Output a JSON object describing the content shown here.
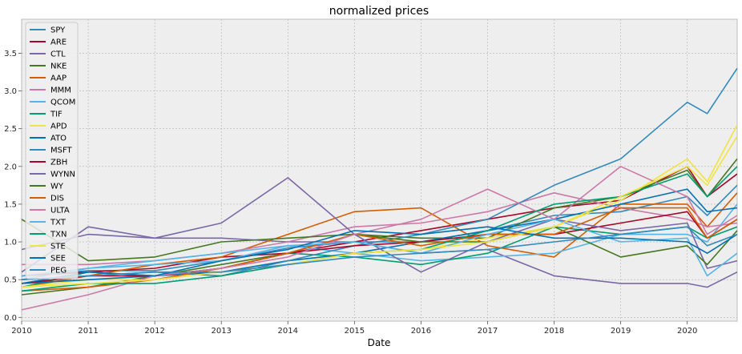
{
  "chart_data": {
    "type": "line",
    "title": "normalized prices",
    "xlabel": "Date",
    "ylabel": "",
    "xlim": [
      2010.0,
      2020.75
    ],
    "ylim": [
      -0.05,
      3.95
    ],
    "x_ticks": [
      {
        "value": 2010,
        "label": "2010"
      },
      {
        "value": 2011,
        "label": "2011"
      },
      {
        "value": 2012,
        "label": "2012"
      },
      {
        "value": 2013,
        "label": "2013"
      },
      {
        "value": 2014,
        "label": "2014"
      },
      {
        "value": 2015,
        "label": "2015"
      },
      {
        "value": 2016,
        "label": "2016"
      },
      {
        "value": 2017,
        "label": "2017"
      },
      {
        "value": 2018,
        "label": "2018"
      },
      {
        "value": 2019,
        "label": "2019"
      },
      {
        "value": 2020,
        "label": "2020"
      }
    ],
    "y_ticks": [
      {
        "value": 0.0,
        "label": "0.0"
      },
      {
        "value": 0.5,
        "label": "0.5"
      },
      {
        "value": 1.0,
        "label": "1.0"
      },
      {
        "value": 1.5,
        "label": "1.5"
      },
      {
        "value": 2.0,
        "label": "2.0"
      },
      {
        "value": 2.5,
        "label": "2.5"
      },
      {
        "value": 3.0,
        "label": "3.0"
      },
      {
        "value": 3.5,
        "label": "3.5"
      }
    ],
    "grid": true,
    "legend_position": "top-left",
    "colors": {
      "background": "#eeeeee",
      "grid": "#b2b2b2",
      "frame": "#bcbcbc"
    },
    "series": [
      {
        "name": "SPY",
        "color": "#348abd",
        "x": [
          2010,
          2011,
          2012,
          2013,
          2014,
          2015,
          2016,
          2017,
          2018,
          2019,
          2020,
          2020.3,
          2020.75
        ],
        "y": [
          0.55,
          0.62,
          0.62,
          0.75,
          0.92,
          1.0,
          1.0,
          1.15,
          1.35,
          1.4,
          1.6,
          1.35,
          1.75
        ]
      },
      {
        "name": "ARE",
        "color": "#a60628",
        "x": [
          2010,
          2011,
          2012,
          2013,
          2014,
          2015,
          2016,
          2017,
          2018,
          2019,
          2020,
          2020.3,
          2020.75
        ],
        "y": [
          0.55,
          0.6,
          0.65,
          0.8,
          0.85,
          1.0,
          1.15,
          1.3,
          1.45,
          1.55,
          2.0,
          1.6,
          1.9
        ]
      },
      {
        "name": "CTL",
        "color": "#7a68a6",
        "x": [
          2010,
          2011,
          2012,
          2013,
          2014,
          2015,
          2016,
          2017,
          2018,
          2019,
          2020,
          2020.3,
          2020.75
        ],
        "y": [
          0.9,
          1.1,
          1.05,
          1.05,
          1.0,
          1.0,
          0.85,
          0.9,
          0.55,
          0.45,
          0.45,
          0.4,
          0.6
        ]
      },
      {
        "name": "NKE",
        "color": "#467821",
        "x": [
          2010,
          2011,
          2012,
          2013,
          2014,
          2015,
          2016,
          2017,
          2018,
          2019,
          2020,
          2020.3,
          2020.75
        ],
        "y": [
          0.3,
          0.4,
          0.55,
          0.7,
          0.85,
          1.1,
          1.05,
          1.05,
          1.45,
          1.6,
          1.95,
          1.6,
          2.1
        ]
      },
      {
        "name": "AAP",
        "color": "#d55e00",
        "x": [
          2010,
          2011,
          2012,
          2013,
          2014,
          2015,
          2016,
          2017,
          2018,
          2019,
          2020,
          2020.3,
          2020.75
        ],
        "y": [
          0.4,
          0.55,
          0.7,
          0.8,
          1.1,
          1.4,
          1.45,
          0.95,
          0.8,
          1.5,
          1.5,
          1.2,
          1.65
        ]
      },
      {
        "name": "MMM",
        "color": "#cc79a7",
        "x": [
          2010,
          2011,
          2012,
          2013,
          2014,
          2015,
          2016,
          2017,
          2018,
          2019,
          2020,
          2020.3,
          2020.75
        ],
        "y": [
          0.7,
          0.7,
          0.75,
          0.85,
          1.0,
          1.2,
          1.25,
          1.4,
          1.65,
          1.45,
          1.3,
          1.2,
          1.25
        ]
      },
      {
        "name": "QCOM",
        "color": "#56b4e9",
        "x": [
          2010,
          2011,
          2012,
          2013,
          2014,
          2015,
          2016,
          2017,
          2018,
          2019,
          2020,
          2020.3,
          2020.75
        ],
        "y": [
          0.5,
          0.65,
          0.75,
          0.85,
          0.95,
          0.85,
          0.75,
          0.8,
          0.85,
          1.1,
          1.1,
          1.0,
          1.5
        ]
      },
      {
        "name": "TIF",
        "color": "#009e73",
        "x": [
          2010,
          2011,
          2012,
          2013,
          2014,
          2015,
          2016,
          2017,
          2018,
          2019,
          2020,
          2020.3,
          2020.75
        ],
        "y": [
          0.4,
          0.6,
          0.55,
          0.65,
          0.85,
          0.8,
          0.7,
          0.85,
          1.2,
          1.1,
          1.2,
          1.05,
          1.2
        ]
      },
      {
        "name": "APD",
        "color": "#f0e442",
        "x": [
          2010,
          2011,
          2012,
          2013,
          2014,
          2015,
          2016,
          2017,
          2018,
          2019,
          2020,
          2020.3,
          2020.75
        ],
        "y": [
          0.4,
          0.5,
          0.5,
          0.6,
          0.75,
          0.85,
          0.9,
          1.05,
          1.2,
          1.55,
          2.1,
          1.8,
          2.55
        ]
      },
      {
        "name": "ATO",
        "color": "#0072b2",
        "x": [
          2010,
          2011,
          2012,
          2013,
          2014,
          2015,
          2016,
          2017,
          2018,
          2019,
          2020,
          2020.3,
          2020.75
        ],
        "y": [
          0.45,
          0.5,
          0.55,
          0.6,
          0.75,
          0.85,
          1.0,
          1.15,
          1.3,
          1.5,
          1.7,
          1.4,
          1.45
        ]
      },
      {
        "name": "MSFT",
        "color": "#348abd",
        "x": [
          2010,
          2011,
          2012,
          2013,
          2014,
          2015,
          2016,
          2017,
          2018,
          2019,
          2020,
          2020.3,
          2020.75
        ],
        "y": [
          0.5,
          0.55,
          0.6,
          0.55,
          0.75,
          0.95,
          1.1,
          1.3,
          1.75,
          2.1,
          2.85,
          2.7,
          3.3
        ]
      },
      {
        "name": "ZBH",
        "color": "#a60628",
        "x": [
          2010,
          2011,
          2012,
          2013,
          2014,
          2015,
          2016,
          2017,
          2018,
          2019,
          2020,
          2020.3,
          2020.75
        ],
        "y": [
          0.45,
          0.55,
          0.55,
          0.65,
          0.85,
          0.95,
          1.0,
          1.1,
          1.1,
          1.25,
          1.4,
          1.05,
          1.3
        ]
      },
      {
        "name": "WYNN",
        "color": "#7a68a6",
        "x": [
          2010,
          2011,
          2012,
          2013,
          2014,
          2015,
          2016,
          2017,
          2018,
          2019,
          2020,
          2020.3,
          2020.75
        ],
        "y": [
          0.6,
          1.2,
          1.05,
          1.25,
          1.85,
          1.1,
          0.6,
          1.0,
          1.3,
          1.15,
          1.25,
          0.65,
          0.75
        ]
      },
      {
        "name": "WY",
        "color": "#467821",
        "x": [
          2010,
          2011,
          2012,
          2013,
          2014,
          2015,
          2016,
          2017,
          2018,
          2019,
          2020,
          2020.3,
          2020.75
        ],
        "y": [
          1.3,
          0.75,
          0.8,
          1.0,
          1.05,
          1.1,
          1.0,
          1.0,
          1.2,
          0.8,
          0.95,
          0.7,
          1.15
        ]
      },
      {
        "name": "DIS",
        "color": "#d55e00",
        "x": [
          2010,
          2011,
          2012,
          2013,
          2014,
          2015,
          2016,
          2017,
          2018,
          2019,
          2020,
          2020.3,
          2020.75
        ],
        "y": [
          0.35,
          0.4,
          0.5,
          0.65,
          0.85,
          1.1,
          0.95,
          1.1,
          1.1,
          1.45,
          1.45,
          1.05,
          1.3
        ]
      },
      {
        "name": "ULTA",
        "color": "#cc79a7",
        "x": [
          2010,
          2011,
          2012,
          2013,
          2014,
          2015,
          2016,
          2017,
          2018,
          2019,
          2020,
          2020.3,
          2020.75
        ],
        "y": [
          0.1,
          0.3,
          0.55,
          0.65,
          0.8,
          1.1,
          1.3,
          1.7,
          1.3,
          2.0,
          1.6,
          1.1,
          1.35
        ]
      },
      {
        "name": "TXT",
        "color": "#56b4e9",
        "x": [
          2010,
          2011,
          2012,
          2013,
          2014,
          2015,
          2016,
          2017,
          2018,
          2019,
          2020,
          2020.3,
          2020.75
        ],
        "y": [
          0.55,
          0.65,
          0.7,
          0.75,
          0.95,
          1.0,
          0.85,
          1.1,
          1.3,
          1.0,
          1.05,
          0.55,
          0.85
        ]
      },
      {
        "name": "TXN",
        "color": "#009e73",
        "x": [
          2010,
          2011,
          2012,
          2013,
          2014,
          2015,
          2016,
          2017,
          2018,
          2019,
          2020,
          2020.3,
          2020.75
        ],
        "y": [
          0.35,
          0.45,
          0.45,
          0.55,
          0.7,
          0.85,
          0.9,
          1.15,
          1.5,
          1.6,
          1.9,
          1.6,
          2.0
        ]
      },
      {
        "name": "STE",
        "color": "#f0e442",
        "x": [
          2010,
          2011,
          2012,
          2013,
          2014,
          2015,
          2016,
          2017,
          2018,
          2019,
          2020,
          2020.3,
          2020.75
        ],
        "y": [
          0.4,
          0.45,
          0.5,
          0.6,
          0.7,
          0.85,
          0.9,
          1.0,
          1.2,
          1.6,
          2.0,
          1.75,
          2.4
        ]
      },
      {
        "name": "SEE",
        "color": "#0072b2",
        "x": [
          2010,
          2011,
          2012,
          2013,
          2014,
          2015,
          2016,
          2017,
          2018,
          2019,
          2020,
          2020.3,
          2020.75
        ],
        "y": [
          0.45,
          0.6,
          0.55,
          0.75,
          0.9,
          1.15,
          1.1,
          1.2,
          1.05,
          1.05,
          1.0,
          0.85,
          1.1
        ]
      },
      {
        "name": "PEG",
        "color": "#348abd",
        "x": [
          2010,
          2011,
          2012,
          2013,
          2014,
          2015,
          2016,
          2017,
          2018,
          2019,
          2020,
          2020.3,
          2020.75
        ],
        "y": [
          0.5,
          0.55,
          0.6,
          0.6,
          0.7,
          0.8,
          0.85,
          0.9,
          1.0,
          1.1,
          1.2,
          0.95,
          1.1
        ]
      }
    ]
  }
}
